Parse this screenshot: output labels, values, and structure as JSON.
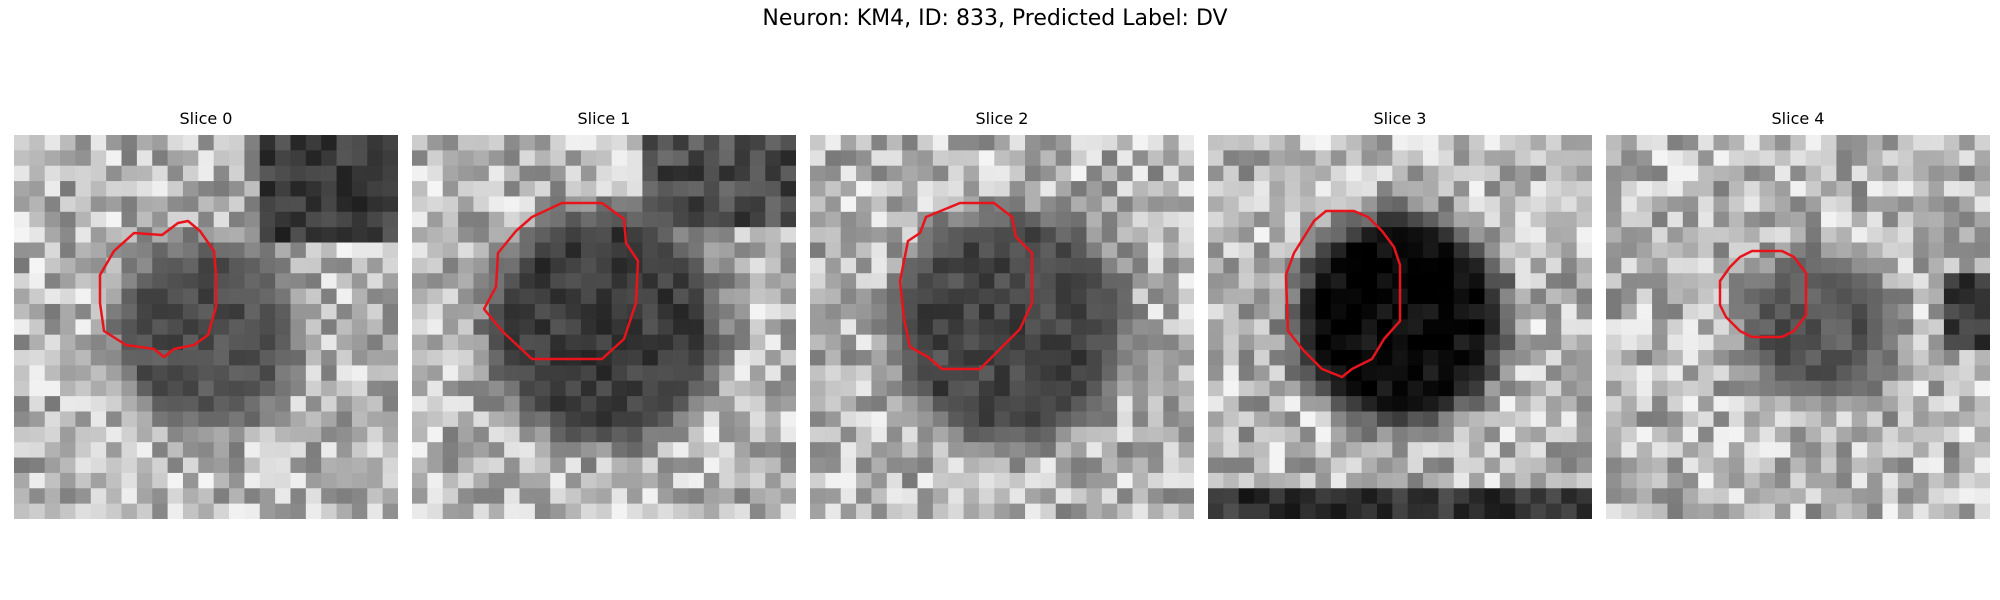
{
  "figure": {
    "title": "Neuron: KM4, ID: 833, Predicted Label: DV",
    "contour_color": "#e8141c"
  },
  "slices": [
    {
      "label": "Slice 0",
      "dark_center": [
        0.5,
        0.52
      ],
      "dark_radius": 0.19,
      "dark_level": 80
    },
    {
      "label": "Slice 1",
      "dark_center": [
        0.5,
        0.5
      ],
      "dark_radius": 0.25,
      "dark_level": 60
    },
    {
      "label": "Slice 2",
      "dark_center": [
        0.52,
        0.5
      ],
      "dark_radius": 0.25,
      "dark_level": 70
    },
    {
      "label": "Slice 3",
      "dark_center": [
        0.5,
        0.48
      ],
      "dark_radius": 0.22,
      "dark_level": 10
    },
    {
      "label": "Slice 4",
      "dark_center": [
        0.55,
        0.5
      ],
      "dark_radius": 0.14,
      "dark_level": 85
    }
  ]
}
